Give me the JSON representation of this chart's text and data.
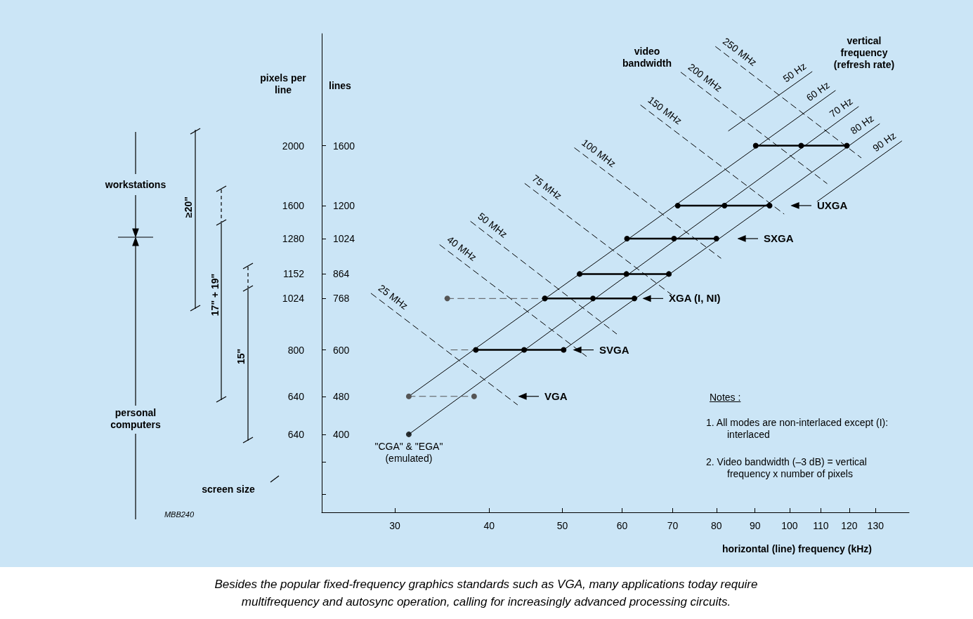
{
  "chart_data": {
    "type": "line",
    "xlabel": "horizontal (line) frequency (kHz)",
    "ylabel": "lines",
    "log": "xy",
    "xlim": [
      24.0,
      144
    ],
    "xticks": [
      30,
      40,
      50,
      60,
      70,
      80,
      90,
      100,
      110,
      120,
      130
    ],
    "ylim": [
      275,
      2740
    ],
    "yticks": [
      {
        "value": 300,
        "label": null
      },
      {
        "value": 350,
        "label": null
      },
      400,
      480,
      600,
      768,
      864,
      1024,
      1200,
      1600
    ],
    "series": [
      {
        "name": "50 Hz",
        "color": "#000000",
        "marker": "none",
        "line_style": "solid",
        "x": [
          83.0,
          107.1
        ],
        "values": [
          1718,
          2283
        ]
      },
      {
        "name": "60 Hz",
        "color": "#000000",
        "marker": "none",
        "line_style": "solid",
        "x": [
          31.3,
          115.0
        ],
        "values": [
          480,
          2085
        ]
      },
      {
        "name": "70 Hz",
        "color": "#000000",
        "marker": "none",
        "line_style": "solid",
        "x": [
          31.3,
          123.4
        ],
        "values": [
          400,
          1930
        ]
      },
      {
        "name": "80 Hz",
        "color": "#000000",
        "marker": "none",
        "line_style": "solid",
        "x": [
          49.9,
          131.6
        ],
        "values": [
          596,
          1777
        ]
      },
      {
        "name": "90 Hz",
        "color": "#000000",
        "marker": "none",
        "line_style": "solid",
        "x": [
          108.8,
          140.8
        ],
        "values": [
          1224,
          1636
        ]
      },
      {
        "name": "25 MHz",
        "color": "#000000",
        "marker": "none",
        "line_style": "dashed",
        "x": [
          27.9,
          43.6
        ],
        "values": [
          787,
          461
        ]
      },
      {
        "name": "40 MHz",
        "color": "#000000",
        "marker": "none",
        "line_style": "dashed",
        "x": [
          34.4,
          53.8
        ],
        "values": [
          994,
          582
        ]
      },
      {
        "name": "50 MHz",
        "color": "#000000",
        "marker": "none",
        "line_style": "dashed",
        "x": [
          37.8,
          59.0
        ],
        "values": [
          1112,
          648
        ]
      },
      {
        "name": "75 MHz",
        "color": "#000000",
        "marker": "none",
        "line_style": "dashed",
        "x": [
          44.6,
          69.8
        ],
        "values": [
          1334,
          782
        ]
      },
      {
        "name": "100 MHz",
        "color": "#000000",
        "marker": "none",
        "line_style": "dashed",
        "x": [
          51.9,
          81.1
        ],
        "values": [
          1583,
          932
        ]
      },
      {
        "name": "150 MHz",
        "color": "#000000",
        "marker": "none",
        "line_style": "dashed",
        "x": [
          63.5,
          98.3
        ],
        "values": [
          1944,
          1153
        ]
      },
      {
        "name": "200 MHz",
        "color": "#000000",
        "marker": "none",
        "line_style": "dashed",
        "x": [
          71.8,
          112.1
        ],
        "values": [
          2276,
          1334
        ]
      },
      {
        "name": "250 MHz",
        "color": "#000000",
        "marker": "none",
        "line_style": "dashed",
        "x": [
          79.8,
          124.4
        ],
        "values": [
          2575,
          1510
        ]
      },
      {
        "color": "#555555",
        "marker": "circle",
        "line_style": "dashed",
        "x": [
          31.3,
          38.2
        ],
        "values": [
          480,
          480
        ]
      },
      {
        "color": "#555555",
        "marker": "none",
        "line_style": "dashed",
        "x": [
          35.6,
          38.4
        ],
        "values": [
          600,
          600
        ]
      },
      {
        "color": "#555555",
        "marker": "circle",
        "line_style": "dashed",
        "x": [
          35.2,
          47.4
        ],
        "values": [
          768,
          768
        ]
      },
      {
        "color": "#000000",
        "marker": "circle",
        "line_style": "solid",
        "x": [
          38.4,
          44.5,
          50.2
        ],
        "values": [
          600,
          600,
          600
        ]
      },
      {
        "color": "#000000",
        "marker": "circle",
        "line_style": "solid",
        "x": [
          47.4,
          54.9,
          62.3
        ],
        "values": [
          768,
          768,
          768
        ]
      },
      {
        "color": "#000000",
        "marker": "circle",
        "line_style": "solid",
        "x": [
          52.7,
          60.8,
          69.2
        ],
        "values": [
          864,
          864,
          864
        ]
      },
      {
        "color": "#000000",
        "marker": "circle",
        "line_style": "solid",
        "x": [
          60.9,
          70.3,
          80.0
        ],
        "values": [
          1024,
          1024,
          1024
        ]
      },
      {
        "color": "#000000",
        "marker": "circle",
        "line_style": "solid",
        "x": [
          71.1,
          82.0,
          94.1
        ],
        "values": [
          1200,
          1200,
          1200
        ]
      },
      {
        "color": "#000000",
        "marker": "circle",
        "line_style": "solid",
        "x": [
          90.2,
          103.6,
          119.1
        ],
        "values": [
          1600,
          1600,
          1600
        ]
      },
      {
        "type": "scatter",
        "color": "#000000",
        "marker": "circle",
        "x": [
          31.3
        ],
        "values": [
          400
        ]
      }
    ],
    "annotations": [
      "video bandwidth",
      "vertical frequency (refresh rate)",
      "workstations",
      "personal computers",
      "screen size",
      "≥20\"",
      "17\" + 19\"",
      "15\"",
      "MBB240",
      "Notes :",
      "1. All modes are non-interlaced except (I): interlaced",
      "2. Video bandwidth (–3 dB) = vertical frequency x number of pixels",
      "Besides the popular fixed-frequency graphics standards such as VGA, many applications today require multifrequency and autosync operation, calling for increasingly advanced processing circuits.",
      {
        "text": "\"CGA\" & \"EGA\" (emulated)",
        "x": 31.3,
        "y": 400
      },
      "VGA",
      "SVGA",
      "XGA (I, NI)",
      "SXGA",
      "UXGA",
      "pixels per line",
      "640",
      "640",
      "800",
      "1024",
      "1152",
      "1280",
      "1600",
      "2000"
    ]
  }
}
